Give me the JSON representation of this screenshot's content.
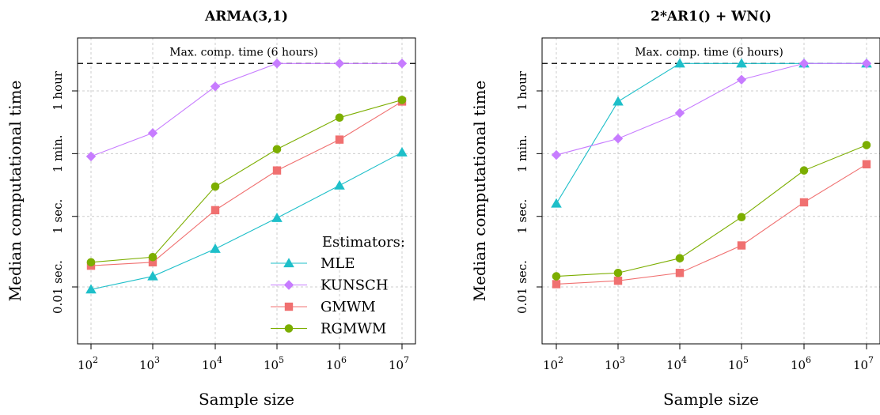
{
  "shared": {
    "xlabel": "Sample size",
    "ylabel": "Median computational time",
    "x_ticks": [
      2,
      3,
      4,
      5,
      6,
      7
    ],
    "x_tick_base": "10",
    "y_ticks": [
      {
        "label": "0.01 sec.",
        "seconds": 0.01
      },
      {
        "label": "1 sec.",
        "seconds": 1
      },
      {
        "label": "1 min.",
        "seconds": 60
      },
      {
        "label": "1 hour",
        "seconds": 3600
      }
    ],
    "max_line_label": "Max. comp. time (6 hours)",
    "max_seconds": 21600
  },
  "legend": {
    "title": "Estimators:",
    "items": [
      {
        "name": "MLE",
        "color": "#1ebfc9",
        "marker": "triangle"
      },
      {
        "name": "KUNSCH",
        "color": "#c77cff",
        "marker": "diamond"
      },
      {
        "name": "GMWM",
        "color": "#f07070",
        "marker": "square"
      },
      {
        "name": "RGMWM",
        "color": "#7cae00",
        "marker": "circle"
      }
    ]
  },
  "chart_data": [
    {
      "type": "line",
      "title": "ARMA(3,1)",
      "x_scale": "log10",
      "y_scale": "log10",
      "x": [
        100,
        1000,
        10000,
        100000,
        1000000,
        10000000
      ],
      "xlim": [
        100,
        10000000
      ],
      "ylim_seconds": [
        0.0003,
        21600
      ],
      "grid": true,
      "legend_position": "bottom-right",
      "series": [
        {
          "name": "MLE",
          "values": [
            0.0085,
            0.02,
            0.12,
            0.9,
            7.5,
            65
          ]
        },
        {
          "name": "KUNSCH",
          "values": [
            50,
            230,
            4800,
            21600,
            21600,
            21600
          ]
        },
        {
          "name": "GMWM",
          "values": [
            0.04,
            0.05,
            1.5,
            20,
            150,
            1800
          ]
        },
        {
          "name": "RGMWM",
          "values": [
            0.05,
            0.07,
            7,
            80,
            630,
            2000
          ]
        }
      ]
    },
    {
      "type": "line",
      "title": "2*AR1() + WN()",
      "x_scale": "log10",
      "y_scale": "log10",
      "x": [
        100,
        1000,
        10000,
        100000,
        1000000,
        10000000
      ],
      "xlim": [
        100,
        10000000
      ],
      "ylim_seconds": [
        0.0003,
        21600
      ],
      "grid": true,
      "series": [
        {
          "name": "MLE",
          "values": [
            2.3,
            1800,
            21600,
            21600,
            21600,
            21600
          ]
        },
        {
          "name": "KUNSCH",
          "values": [
            55,
            160,
            850,
            7500,
            21600,
            21600
          ]
        },
        {
          "name": "GMWM",
          "values": [
            0.012,
            0.015,
            0.025,
            0.15,
            2.5,
            30
          ]
        },
        {
          "name": "RGMWM",
          "values": [
            0.02,
            0.025,
            0.065,
            0.95,
            20,
            105
          ]
        }
      ]
    }
  ]
}
